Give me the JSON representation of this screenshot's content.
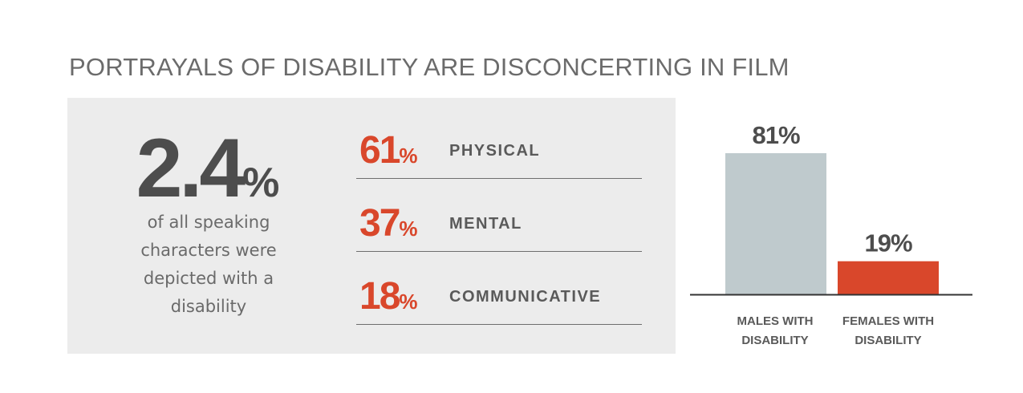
{
  "title": "PORTRAYALS OF DISABILITY ARE DISCONCERTING IN FILM",
  "headline_stat": {
    "value": "2.4",
    "unit": "%",
    "description_lines": [
      "of all speaking",
      "characters were",
      "depicted with a",
      "disability"
    ]
  },
  "breakdown": [
    {
      "value": "61",
      "unit": "%",
      "label": "PHYSICAL"
    },
    {
      "value": "37",
      "unit": "%",
      "label": "MENTAL"
    },
    {
      "value": "18",
      "unit": "%",
      "label": "COMMUNICATIVE"
    }
  ],
  "colors": {
    "title": "#6b6b6b",
    "panel": "#ececec",
    "accent": "#d9472b",
    "males_bar": "#bfcacd",
    "females_bar": "#d9472b",
    "text_dark": "#4d4d4d"
  },
  "chart_data": {
    "type": "bar",
    "categories": [
      "MALES WITH DISABILITY",
      "FEMALES WITH DISABILITY"
    ],
    "category_lines": [
      [
        "MALES WITH",
        "DISABILITY"
      ],
      [
        "FEMALES WITH",
        "DISABILITY"
      ]
    ],
    "values": [
      81,
      19
    ],
    "data_labels": [
      "81%",
      "19%"
    ],
    "bar_colors": [
      "#bfcacd",
      "#d9472b"
    ],
    "ylim": [
      0,
      100
    ],
    "grid": false,
    "title": "",
    "xlabel": "",
    "ylabel": ""
  }
}
